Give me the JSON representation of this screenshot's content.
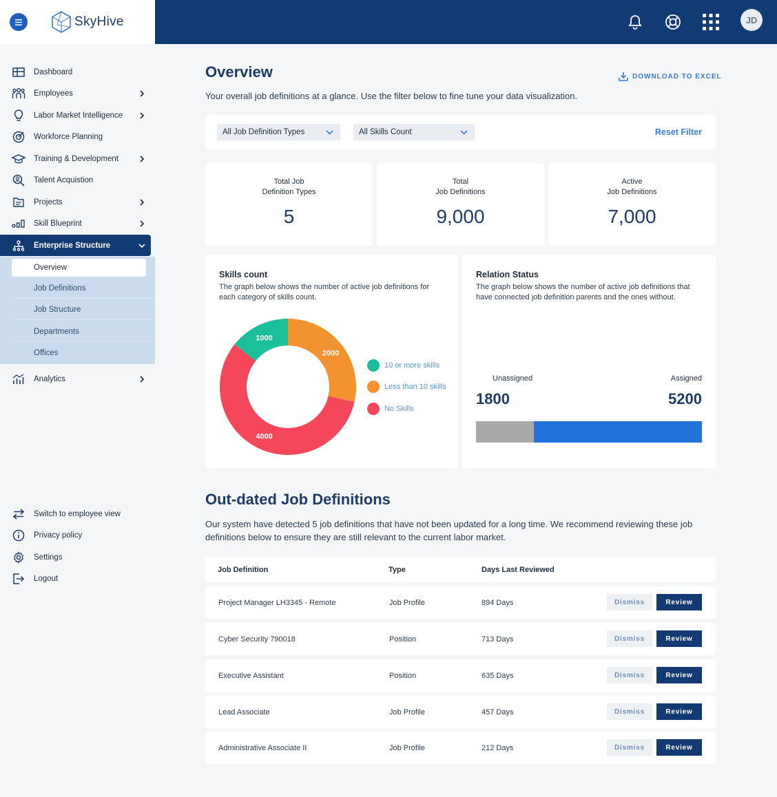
{
  "brand": {
    "name": "SkyHive"
  },
  "header": {
    "user_initials": "JD",
    "icons": [
      "bell-icon",
      "help-icon",
      "apps-grid-icon"
    ]
  },
  "sidebar": {
    "items": [
      {
        "label": "Dashboard",
        "icon": "dashboard-icon",
        "has_children": false
      },
      {
        "label": "Employees",
        "icon": "people-icon",
        "has_children": true
      },
      {
        "label": "Labor Market Intelligence",
        "icon": "lightbulb-icon",
        "has_children": true
      },
      {
        "label": "Workforce Planning",
        "icon": "target-icon",
        "has_children": false
      },
      {
        "label": "Training & Development",
        "icon": "graduation-icon",
        "has_children": true
      },
      {
        "label": "Talent Acquistion",
        "icon": "search-person-icon",
        "has_children": false
      },
      {
        "label": "Projects",
        "icon": "folder-icon",
        "has_children": true
      },
      {
        "label": "Skill Blueprint",
        "icon": "bars-icon",
        "has_children": true
      },
      {
        "label": "Enterprise Structure",
        "icon": "org-icon",
        "has_children": true,
        "active": true
      }
    ],
    "sub_items": [
      {
        "label": "Overview",
        "active": true
      },
      {
        "label": "Job Definitions"
      },
      {
        "label": "Job Structure"
      },
      {
        "label": "Departments"
      },
      {
        "label": "Offices"
      }
    ],
    "analytics": {
      "label": "Analytics"
    },
    "footer": [
      {
        "label": "Switch to employee view",
        "icon": "switch-icon"
      },
      {
        "label": "Privacy policy",
        "icon": "info-icon"
      },
      {
        "label": "Settings",
        "icon": "gear-icon"
      },
      {
        "label": "Logout",
        "icon": "logout-icon"
      }
    ]
  },
  "main": {
    "title": "Overview",
    "download_label": "DOWNLOAD TO EXCEL",
    "subtitle": "Your overall job definitions at a glance. Use the filter below to fine tune your data visualization.",
    "filters": {
      "type_value": "All Job Definition Types",
      "skills_value": "All Skills Count",
      "reset_label": "Reset Filter"
    },
    "stats": [
      {
        "caption": "Total Job\nDefinition Types",
        "value": "5"
      },
      {
        "caption": "Total\nJob Definitions",
        "value": "9,000"
      },
      {
        "caption": "Active\nJob Definitions",
        "value": "7,000"
      }
    ],
    "skills_card": {
      "title": "Skills count",
      "desc": "The graph below shows the number of active job definitions for each category of skills count."
    },
    "relation_card": {
      "title": "Relation Status",
      "desc": "The graph below shows the number of active job definitions that have connected job definition parents and the ones without.",
      "unassigned_label": "Unassigned",
      "assigned_label": "Assigned",
      "unassigned_value": "1800",
      "assigned_value": "5200",
      "colors": {
        "unassigned": "#a9a9a9",
        "assigned": "#2272db"
      }
    },
    "outdated": {
      "title": "Out-dated Job Definitions",
      "desc": "Our system have detected 5 job definitions that have not been updated for a long time. We recommend reviewing these job definitions below to ensure they are still relevant to the current labor market.",
      "columns": [
        "Job Definition",
        "Type",
        "Days Last Reviewed"
      ],
      "dismiss_label": "Dismiss",
      "review_label": "Review",
      "rows": [
        {
          "name": "Project Manager LH3345 - Remote",
          "type": "Job Profile",
          "days": "894 Days"
        },
        {
          "name": "Cyber Security 790018",
          "type": "Position",
          "days": "713 Days"
        },
        {
          "name": "Executive Assistant",
          "type": "Position",
          "days": "635 Days"
        },
        {
          "name": "Lead Associate",
          "type": "Job Profile",
          "days": "457 Days"
        },
        {
          "name": "Administrative Associate II",
          "type": "Job Profile",
          "days": "212 Days"
        }
      ]
    }
  },
  "chart_data": [
    {
      "type": "pie",
      "categories": [
        "10 or more skills",
        "Less than 10 skills",
        "No Skills"
      ],
      "values": [
        1000,
        2000,
        4000
      ],
      "colors": [
        "#1cbf9b",
        "#f29230",
        "#f4475a"
      ],
      "data_labels": [
        "1000",
        "2000",
        "4000"
      ],
      "legend": "right"
    },
    {
      "type": "bar",
      "categories": [
        "Unassigned",
        "Assigned"
      ],
      "values": [
        1800,
        5200
      ],
      "orientation": "horizontal-stacked"
    }
  ]
}
